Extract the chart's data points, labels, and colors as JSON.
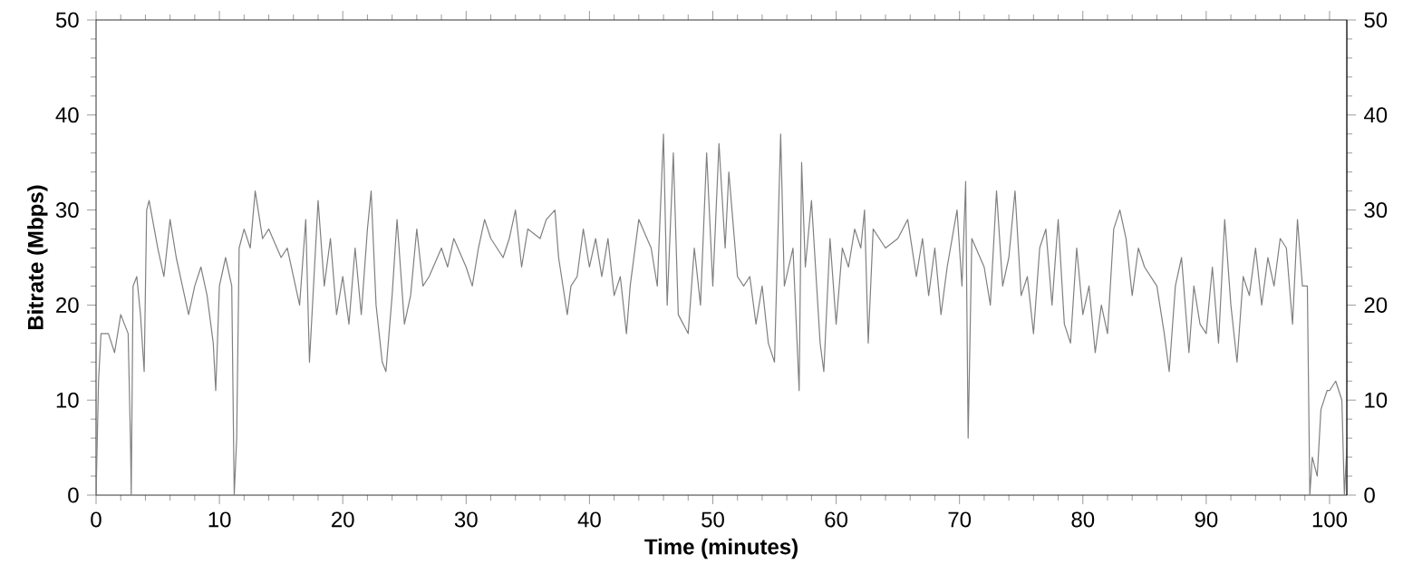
{
  "chart_data": {
    "type": "line",
    "xlabel": "Time (minutes)",
    "ylabel": "Bitrate (Mbps)",
    "xlim": [
      0,
      101.4
    ],
    "xticks": [
      0,
      10,
      20,
      30,
      40,
      50,
      60,
      70,
      80,
      90,
      100
    ],
    "ylim": [
      0,
      50
    ],
    "yticks": [
      0,
      10,
      20,
      30,
      40,
      50
    ],
    "y2lim": [
      0,
      50
    ],
    "y2ticks": [
      0,
      10,
      20,
      30,
      40,
      50
    ],
    "grid": false,
    "marker": "none",
    "line_style": "solid",
    "series": [
      {
        "color": "#808080",
        "x": [
          0,
          0.2,
          0.4,
          1,
          1.5,
          2,
          2.6,
          2.8,
          2.85,
          3.0,
          3.3,
          3.6,
          3.9,
          4.1,
          4.3,
          5,
          5.5,
          6,
          6.5,
          7,
          7.5,
          8,
          8.5,
          9,
          9.5,
          9.7,
          10,
          10.5,
          11,
          11.2,
          11.4,
          11.6,
          12,
          12.5,
          12.9,
          13.5,
          14,
          15,
          15.5,
          16,
          16.5,
          17,
          17.3,
          18,
          18.5,
          19,
          19.5,
          20,
          20.5,
          21,
          21.5,
          22,
          22.3,
          22.7,
          23.2,
          23.5,
          24,
          24.4,
          25,
          25.5,
          26,
          26.5,
          27,
          28,
          28.5,
          29,
          30,
          30.5,
          31,
          31.5,
          32,
          33,
          33.5,
          34,
          34.5,
          35,
          36,
          36.5,
          37.2,
          37.5,
          38.2,
          38.5,
          39,
          39.5,
          40,
          40.5,
          41,
          41.5,
          42,
          42.5,
          43,
          43.3,
          44,
          45,
          45.5,
          46,
          46.3,
          46.8,
          47.2,
          48,
          48.5,
          49,
          49.5,
          50,
          50.5,
          51,
          51.3,
          52,
          52.5,
          53,
          53.5,
          54,
          54.5,
          55,
          55.5,
          55.8,
          56.5,
          57,
          57.2,
          57.5,
          58,
          58.7,
          59,
          59.5,
          60,
          60.5,
          61,
          61.5,
          62,
          62.3,
          62.6,
          63,
          64,
          65,
          65.8,
          66.5,
          67,
          67.5,
          68,
          68.5,
          69,
          69.8,
          70.2,
          70.5,
          70.7,
          71,
          72,
          72.5,
          73,
          73.5,
          74,
          74.5,
          75,
          75.5,
          76,
          76.5,
          77,
          77.5,
          78,
          78.5,
          79,
          79.5,
          80,
          80.5,
          81,
          81.5,
          82,
          82.5,
          83,
          83.5,
          84,
          84.5,
          85,
          86,
          86.6,
          87,
          87.5,
          88,
          88.6,
          89,
          89.5,
          90,
          90.5,
          91,
          91.5,
          92,
          92.5,
          93,
          93.5,
          94,
          94.5,
          95,
          95.5,
          96,
          96.5,
          97,
          97.4,
          97.8,
          98.2,
          98.4,
          98.6,
          99,
          99.3,
          99.8,
          100,
          100.5,
          101,
          101.2,
          101.4
        ],
        "values": [
          0,
          12,
          17,
          17,
          15,
          19,
          17,
          5,
          0,
          22,
          23,
          19,
          13,
          30,
          31,
          26,
          23,
          29,
          25,
          22,
          19,
          22,
          24,
          21,
          16,
          11,
          22,
          25,
          22,
          0,
          6,
          26,
          28,
          26,
          32,
          27,
          28,
          25,
          26,
          23,
          20,
          29,
          14,
          31,
          22,
          27,
          19,
          23,
          18,
          26,
          19,
          28,
          32,
          20,
          14,
          13,
          21,
          29,
          18,
          21,
          28,
          22,
          23,
          26,
          24,
          27,
          24,
          22,
          26,
          29,
          27,
          25,
          27,
          30,
          24,
          28,
          27,
          29,
          30,
          25,
          19,
          22,
          23,
          28,
          24,
          27,
          23,
          27,
          21,
          23,
          17,
          22,
          29,
          26,
          22,
          38,
          20,
          36,
          19,
          17,
          26,
          20,
          36,
          22,
          37,
          26,
          34,
          23,
          22,
          23,
          18,
          22,
          16,
          14,
          38,
          22,
          26,
          11,
          35,
          24,
          31,
          16,
          13,
          27,
          18,
          26,
          24,
          28,
          26,
          30,
          16,
          28,
          26,
          27,
          29,
          23,
          27,
          21,
          26,
          19,
          24,
          30,
          22,
          33,
          6,
          27,
          24,
          20,
          32,
          22,
          25,
          32,
          21,
          23,
          17,
          26,
          28,
          20,
          29,
          18,
          16,
          26,
          19,
          22,
          15,
          20,
          17,
          28,
          30,
          27,
          21,
          26,
          24,
          22,
          17,
          13,
          22,
          25,
          15,
          22,
          18,
          17,
          24,
          16,
          29,
          20,
          14,
          23,
          21,
          26,
          20,
          25,
          22,
          27,
          26,
          18,
          29,
          22,
          22,
          0,
          4,
          2,
          9,
          11,
          11,
          12,
          10,
          0,
          5
        ]
      }
    ]
  }
}
